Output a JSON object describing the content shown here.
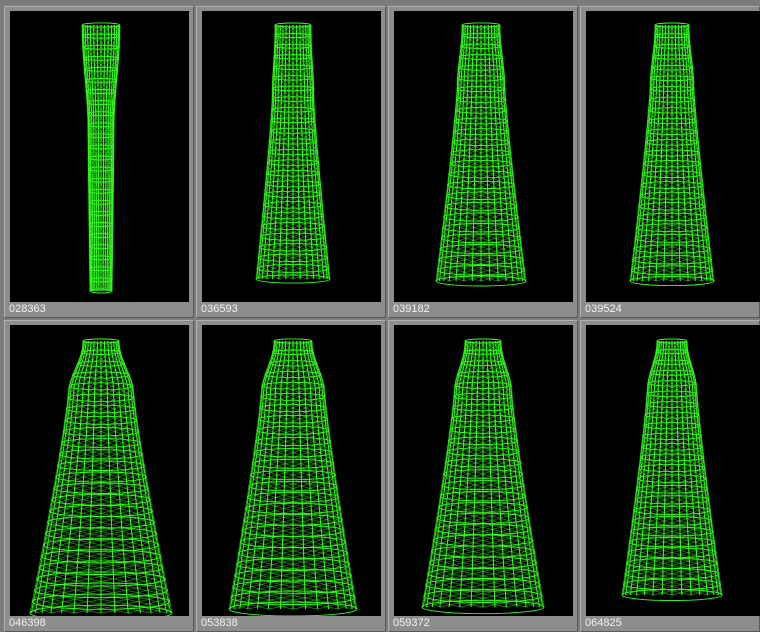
{
  "thumbnails": [
    {
      "label": "028363",
      "wire_color": "#33ff1a"
    },
    {
      "label": "036593",
      "wire_color": "#33ff1a"
    },
    {
      "label": "039182",
      "wire_color": "#33ff1a"
    },
    {
      "label": "039524",
      "wire_color": "#33ff1a"
    },
    {
      "label": "046398",
      "wire_color": "#33ff1a"
    },
    {
      "label": "053838",
      "wire_color": "#33ff1a"
    },
    {
      "label": "059372",
      "wire_color": "#33ff1a"
    },
    {
      "label": "064825",
      "wire_color": "#33ff1a"
    }
  ]
}
